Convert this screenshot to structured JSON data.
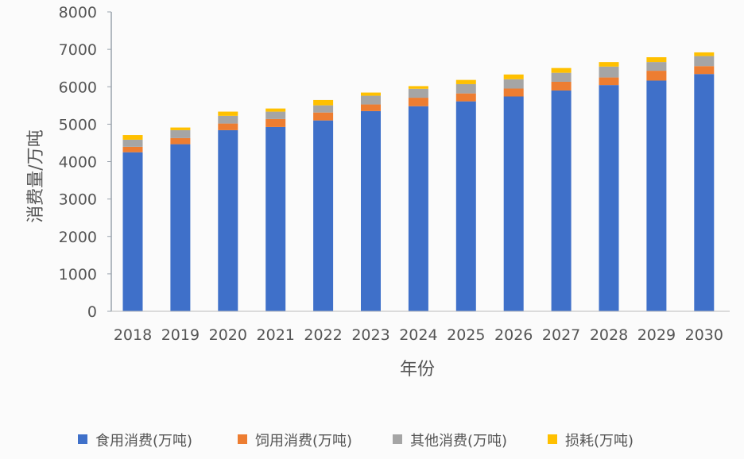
{
  "chart_data": {
    "type": "bar",
    "stacked": true,
    "title": "",
    "xlabel": "年份",
    "ylabel": "消费量/万吨",
    "ylim": [
      0,
      8000
    ],
    "yticks": [
      0,
      1000,
      2000,
      3000,
      4000,
      5000,
      6000,
      7000,
      8000
    ],
    "grid": false,
    "legend_position": "bottom",
    "categories": [
      "2018",
      "2019",
      "2020",
      "2021",
      "2022",
      "2023",
      "2024",
      "2025",
      "2026",
      "2027",
      "2028",
      "2029",
      "2030"
    ],
    "series": [
      {
        "name": "食用消费(万吨)",
        "color": "#3f70c9",
        "values": [
          4250,
          4465,
          4840,
          4925,
          5100,
          5350,
          5480,
          5610,
          5740,
          5900,
          6045,
          6165,
          6340
        ]
      },
      {
        "name": "饲用消费(万吨)",
        "color": "#ed7d31",
        "values": [
          145,
          163,
          177,
          212,
          212,
          177,
          227,
          212,
          212,
          233,
          203,
          263,
          212
        ]
      },
      {
        "name": "其他消费(万吨)",
        "color": "#a5a5a5",
        "values": [
          190,
          212,
          206,
          198,
          192,
          233,
          239,
          248,
          249,
          240,
          291,
          233,
          268
        ]
      },
      {
        "name": "损耗(万吨)",
        "color": "#ffc000",
        "values": [
          125,
          71,
          113,
          84,
          142,
          85,
          71,
          113,
          127,
          128,
          121,
          128,
          99
        ]
      }
    ]
  }
}
